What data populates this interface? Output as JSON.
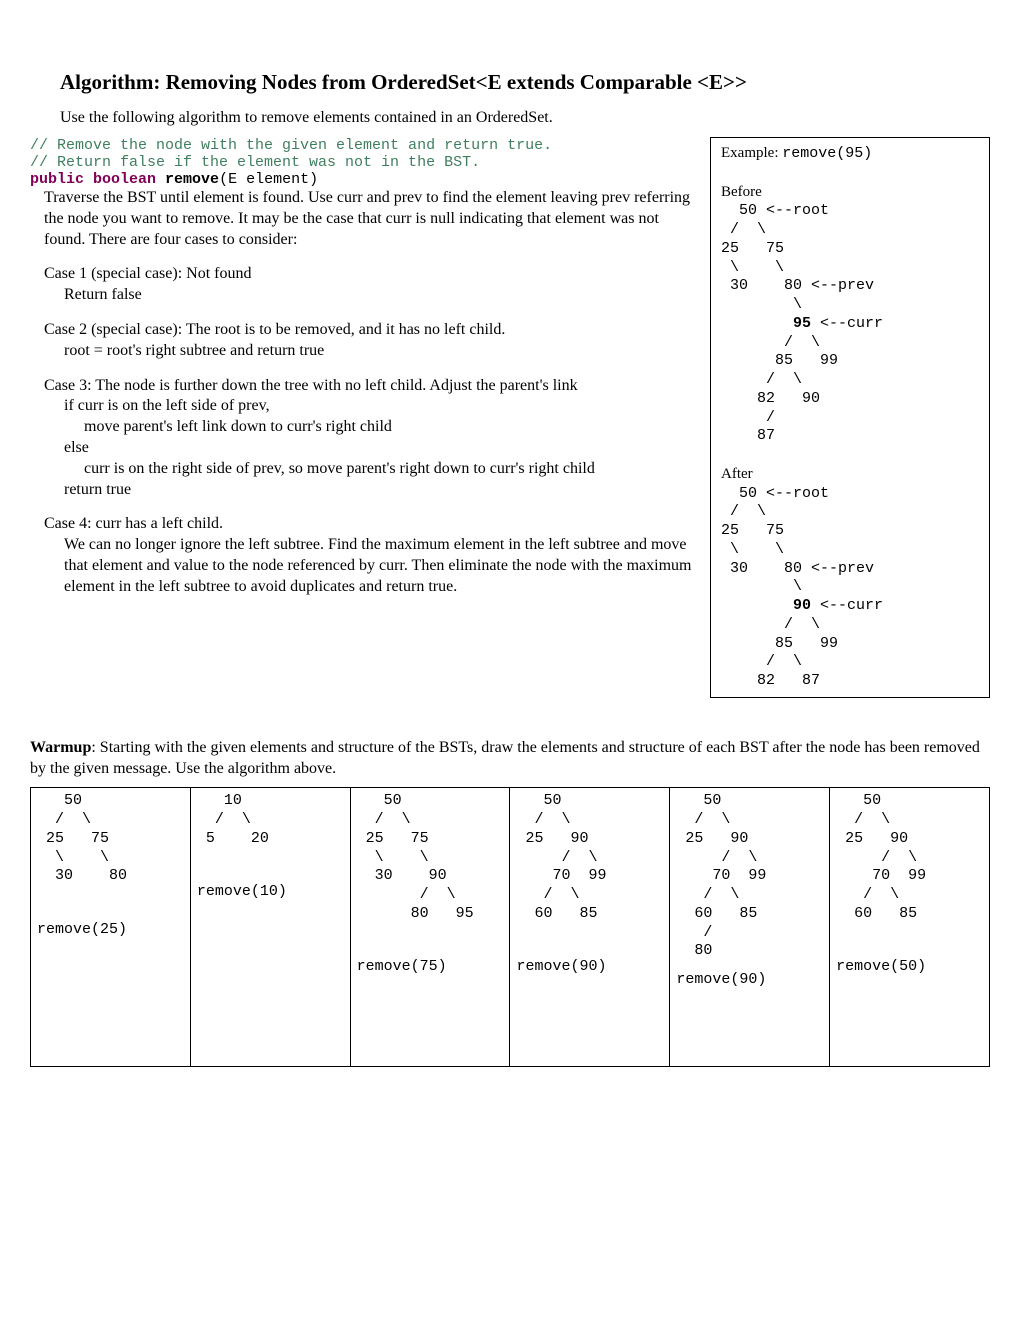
{
  "title": "Algorithm: Removing Nodes from OrderedSet<E extends Comparable <E>>",
  "intro": "Use the following algorithm to remove elements contained in an OrderedSet.",
  "code": {
    "c1": "// Remove the node with the given element and return true.",
    "c2": "// Return false if the element was not in the BST.",
    "kw_public": "public",
    "kw_boolean": "boolean",
    "method": " remove",
    "sig_rest": "(E element)"
  },
  "algo": {
    "p1": "Traverse the BST until element is found. Use curr and prev to find the element leaving prev referring the node you want to remove. It may be the case that curr is null indicating that element was not found. There are four cases to consider:",
    "case1_h": "Case 1 (special case): Not found",
    "case1_b": "Return false",
    "case2_h": "Case 2 (special case): The root is to be removed, and it has no left child.",
    "case2_b": "root = root's right subtree and return true",
    "case3_h": "Case 3: The node is further down the tree with no left child. Adjust the parent's link",
    "case3_l1": "if curr is on the left side of prev,",
    "case3_l2": "move parent's left link down to curr's right child",
    "case3_l3": "else",
    "case3_l4": "curr is on the right side of prev, so move parent's right down to curr's right child",
    "case3_l5": "return true",
    "case4_h": "Case 4: curr has a left child.",
    "case4_b": "We can no longer ignore the left subtree. Find the maximum element in the left subtree and move that element and value to the node referenced by curr. Then eliminate the node with the maximum element in the left subtree to avoid duplicates and return true."
  },
  "example": {
    "title_pre": "Example: ",
    "title_code": "remove(95)",
    "before_label": "Before",
    "before_tree": "  50 <--root\n /  \\\n25   75\n \\    \\\n 30    80 <--prev\n        \\\n        ",
    "before_curr_node": "95",
    "before_curr_rest": " <--curr",
    "before_tree2": "       /  \\\n      85   99\n     /  \\\n    82   90\n     /\n    87",
    "after_label": "After",
    "after_tree": "  50 <--root\n /  \\\n25   75\n \\    \\\n 30    80 <--prev\n        \\\n        ",
    "after_curr_node": "90",
    "after_curr_rest": " <--curr",
    "after_tree2": "       /  \\\n      85   99\n     /  \\\n    82   87"
  },
  "warmup": {
    "label": "Warmup",
    "text": ": Starting with the given elements and structure of the BSTs, draw the elements and structure of each BST after the node has been removed by the given message.  Use the algorithm above."
  },
  "cells": [
    {
      "tree": "   50\n  /  \\\n 25   75\n  \\    \\\n  30    80",
      "call": "remove(25)"
    },
    {
      "tree": "   10\n  /  \\\n 5    20",
      "call": "remove(10)"
    },
    {
      "tree": "   50\n  /  \\\n 25   75\n  \\    \\\n  30    90\n       /  \\\n      80   95",
      "call": "remove(75)"
    },
    {
      "tree": "   50\n  /  \\\n 25   90\n     /  \\\n    70  99\n   /  \\\n  60   85",
      "call": "remove(90)"
    },
    {
      "tree": "   50\n  /  \\\n 25   90\n     /  \\\n    70  99\n   /  \\\n  60   85\n   /\n  80",
      "call": "remove(90)"
    },
    {
      "tree": "   50\n  /  \\\n 25   90\n     /  \\\n    70  99\n   /  \\\n  60   85",
      "call": "remove(50)"
    }
  ]
}
